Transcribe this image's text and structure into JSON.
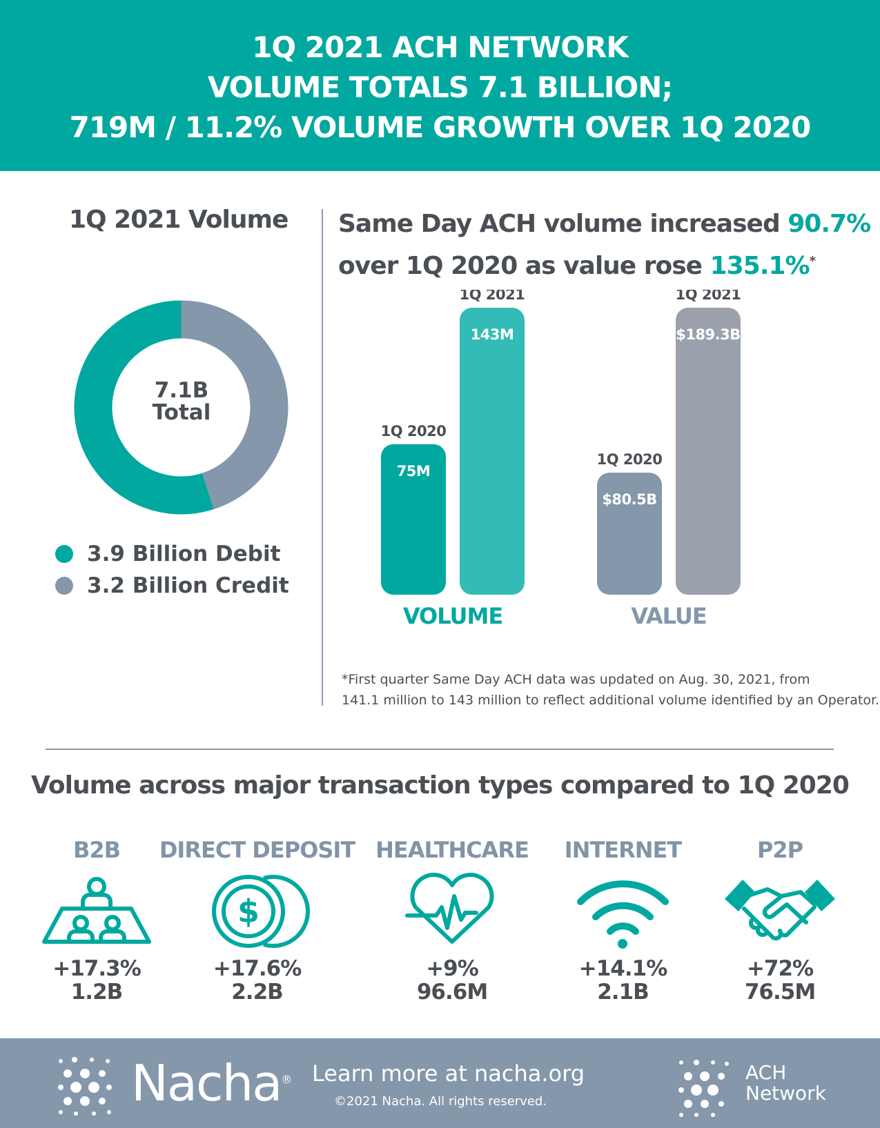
{
  "header": {
    "line1": "1Q 2021 ACH NETWORK",
    "line2": "VOLUME TOTALS  7.1 BILLION;",
    "line3": "719M / 11.2% VOLUME GROWTH OVER 1Q 2020"
  },
  "donut_panel": {
    "title": "1Q 2021 Volume",
    "center_value": "7.1B",
    "center_label": "Total",
    "legend": [
      {
        "label": "3.9 Billion Debit",
        "color": "#00a89f"
      },
      {
        "label": "3.2 Billion Credit",
        "color": "#8497ab"
      }
    ]
  },
  "sdach_panel": {
    "headline_part1": "Same Day ACH volume increased ",
    "headline_pct1": "90.7%",
    "headline_part2": "over 1Q 2020 as value rose ",
    "headline_pct2": "135.1%",
    "headline_star": "*",
    "footnote_line1": "*First quarter Same Day ACH data was updated on Aug. 30, 2021, from",
    "footnote_line2": "141.1 million to 143 million to reflect additional volume identified by an Operator."
  },
  "chart_data": [
    {
      "type": "pie",
      "title": "1Q 2021 Volume",
      "categories": [
        "3.9 Billion Debit",
        "3.2 Billion Credit"
      ],
      "values": [
        3.9,
        3.2
      ],
      "colors": [
        "#00a89f",
        "#8497ab"
      ]
    },
    {
      "type": "bar",
      "groups": [
        {
          "name": "VOLUME",
          "categories": [
            "1Q 2020",
            "1Q 2021"
          ],
          "values": [
            75,
            143
          ],
          "value_labels": [
            "75M",
            "143M"
          ],
          "colors": [
            "#00a89f",
            "#33bcb7"
          ]
        },
        {
          "name": "VALUE",
          "categories": [
            "1Q 2020",
            "1Q 2021"
          ],
          "values": [
            80.5,
            189.3
          ],
          "value_labels": [
            "$80.5B",
            "$189.3B"
          ],
          "colors": [
            "#8497ab",
            "#9aa1ad"
          ]
        }
      ],
      "colors": {
        "volume_label": "#00a89f",
        "value_label": "#8497ab"
      }
    }
  ],
  "types": {
    "title": "Volume across major transaction types compared to 1Q 2020",
    "items": [
      {
        "label": "B2B",
        "change": "+17.3%",
        "volume": "1.2B",
        "icon": "meeting-table-icon"
      },
      {
        "label": "DIRECT DEPOSIT",
        "change": "+17.6%",
        "volume": "2.2B",
        "icon": "dollar-coins-icon"
      },
      {
        "label": "HEALTHCARE",
        "change": "+9%",
        "volume": "96.6M",
        "icon": "heartbeat-icon"
      },
      {
        "label": "INTERNET",
        "change": "+14.1%",
        "volume": "2.1B",
        "icon": "wifi-icon"
      },
      {
        "label": "P2P",
        "change": "+72%",
        "volume": "76.5M",
        "icon": "handshake-icon"
      }
    ]
  },
  "footer": {
    "brand": "Nacha",
    "brand_mark": "®",
    "learn_more": "Learn more at nacha.org",
    "copyright": "©2021 Nacha. All rights reserved.",
    "network_line1": "ACH",
    "network_line2": "Network"
  }
}
